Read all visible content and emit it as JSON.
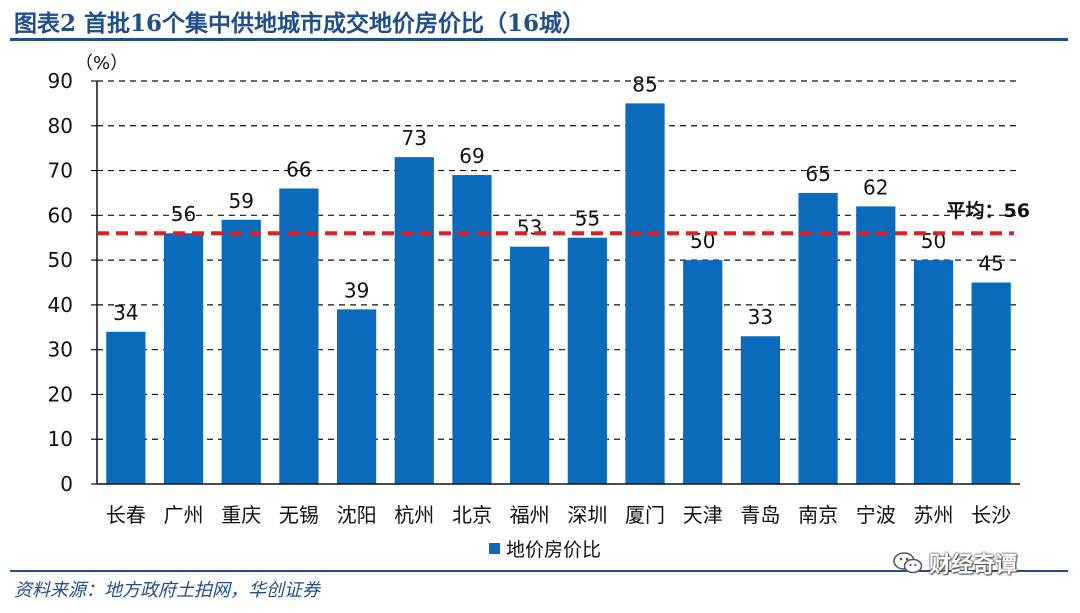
{
  "figure_title": "图表2 首批16个集中供地城市成交地价房价比（16城）",
  "source": "资料来源：地方政府土拍网，华创证券",
  "watermark": {
    "text": "财经奇谭",
    "icon": "wechat-icon"
  },
  "colors": {
    "bar": "#0a6bbd",
    "average_line": "#e02020",
    "title": "#1f4e8c"
  },
  "chart_data": {
    "type": "bar",
    "title": "",
    "xlabel": "",
    "ylabel": "（%）",
    "ylim": [
      0,
      90
    ],
    "yticks": [
      0,
      10,
      20,
      30,
      40,
      50,
      60,
      70,
      80,
      90
    ],
    "grid": "dashed-horizontal",
    "legend_position": "bottom-center",
    "categories": [
      "长春",
      "广州",
      "重庆",
      "无锡",
      "沈阳",
      "杭州",
      "北京",
      "福州",
      "深圳",
      "厦门",
      "天津",
      "青岛",
      "南京",
      "宁波",
      "苏州",
      "长沙"
    ],
    "series": [
      {
        "name": "地价房价比",
        "values": [
          34,
          56,
          59,
          66,
          39,
          73,
          69,
          53,
          55,
          85,
          50,
          33,
          65,
          62,
          50,
          45
        ]
      }
    ],
    "average": {
      "value": 56,
      "label": "平均：56"
    }
  }
}
